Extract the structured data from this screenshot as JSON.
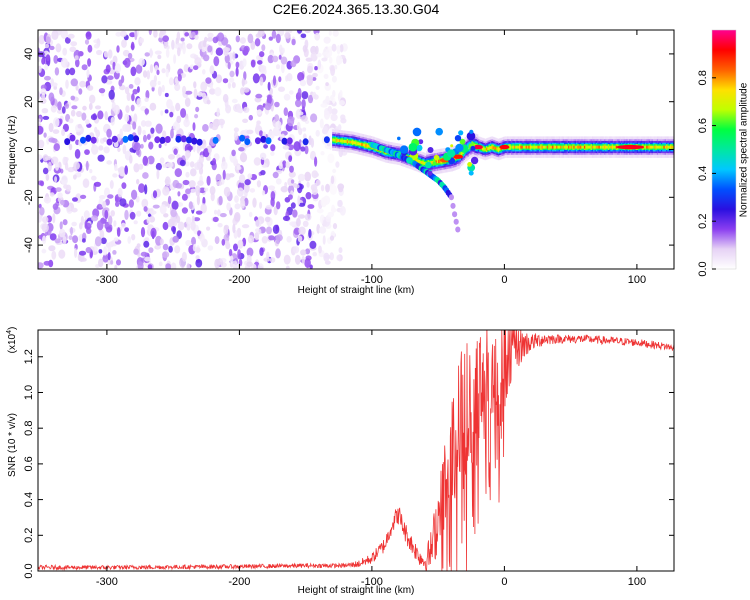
{
  "chart_data": [
    {
      "type": "heatmap",
      "title": "C2E6.2024.365.13.30.G04",
      "xlabel": "Height of straight line (km)",
      "ylabel": "Frequency (Hz)",
      "xlim": [
        -352,
        128
      ],
      "ylim": [
        -50,
        50
      ],
      "xticks": [
        -300,
        -200,
        -100,
        0,
        100
      ],
      "yticks": [
        -40,
        -20,
        0,
        20,
        40
      ],
      "colorbar": {
        "label": "Normalized spectral amplitude",
        "range": [
          0,
          1
        ],
        "ticks": [
          0.0,
          0.2,
          0.4,
          0.6,
          0.8
        ],
        "colors": [
          "#ffffff",
          "#e6d2f5",
          "#8a3ef0",
          "#2a10e0",
          "#0050ff",
          "#00c8ff",
          "#00e8a0",
          "#00ff40",
          "#c0ff00",
          "#ffe000",
          "#ff6000",
          "#ff0000",
          "#ff0090"
        ]
      },
      "ridge": {
        "x": [
          -130,
          -115,
          -100,
          -90,
          -80,
          -70,
          -60,
          -50,
          -40,
          -35,
          -30,
          -25,
          -20,
          -15,
          -10,
          -5,
          0,
          10,
          30,
          60,
          90,
          110,
          128
        ],
        "y": [
          4,
          3,
          1,
          -1,
          -2,
          -4,
          -6,
          -5,
          -4,
          -3,
          0,
          2,
          1,
          0,
          1,
          0,
          1,
          1,
          1,
          1,
          1,
          1,
          1
        ]
      },
      "secondary_branch": {
        "x": [
          -100,
          -85,
          -70,
          -60,
          -50,
          -45,
          -40,
          -38,
          -35
        ],
        "y": [
          2,
          -1,
          -5,
          -9,
          -13,
          -16,
          -20,
          -26,
          -34
        ]
      },
      "noise_region_x": [
        -352,
        -128
      ],
      "grid": false
    },
    {
      "type": "line",
      "xlabel": "Height of straight line (km)",
      "ylabel": "SNR (10 * v/v)",
      "y_scale_note": "(x10",
      "y_scale_exp": "4",
      "y_scale_close": ")",
      "xlim": [
        -352,
        128
      ],
      "ylim": [
        0,
        1.35
      ],
      "xticks": [
        -300,
        -200,
        -100,
        0,
        100
      ],
      "yticks": [
        0.0,
        0.2,
        0.4,
        0.6,
        0.8,
        1.0,
        1.2
      ],
      "series_color": "#ee3333",
      "envelope": {
        "x": [
          -352,
          -300,
          -200,
          -150,
          -120,
          -110,
          -100,
          -90,
          -85,
          -80,
          -75,
          -70,
          -65,
          -60,
          -55,
          -50,
          -45,
          -40,
          -35,
          -30,
          -25,
          -20,
          -15,
          -10,
          -5,
          0,
          5,
          10,
          15,
          20,
          30,
          40,
          50,
          60,
          80,
          100,
          120,
          128
        ],
        "y": [
          0.02,
          0.02,
          0.025,
          0.03,
          0.03,
          0.04,
          0.07,
          0.15,
          0.26,
          0.32,
          0.22,
          0.15,
          0.09,
          0.05,
          0.12,
          0.3,
          0.5,
          0.62,
          0.78,
          0.9,
          0.88,
          1.0,
          1.1,
          1.15,
          1.05,
          1.2,
          1.22,
          1.25,
          1.27,
          1.28,
          1.3,
          1.3,
          1.3,
          1.3,
          1.29,
          1.28,
          1.26,
          1.25
        ]
      },
      "noise_amplitude": {
        "x": [
          -352,
          -120,
          -100,
          -80,
          -60,
          -50,
          -40,
          -30,
          -20,
          -10,
          0,
          10,
          20,
          40,
          128
        ],
        "y": [
          0.012,
          0.012,
          0.03,
          0.06,
          0.05,
          0.2,
          0.35,
          0.45,
          0.4,
          0.35,
          0.3,
          0.12,
          0.05,
          0.025,
          0.02
        ]
      },
      "grid": false
    }
  ]
}
